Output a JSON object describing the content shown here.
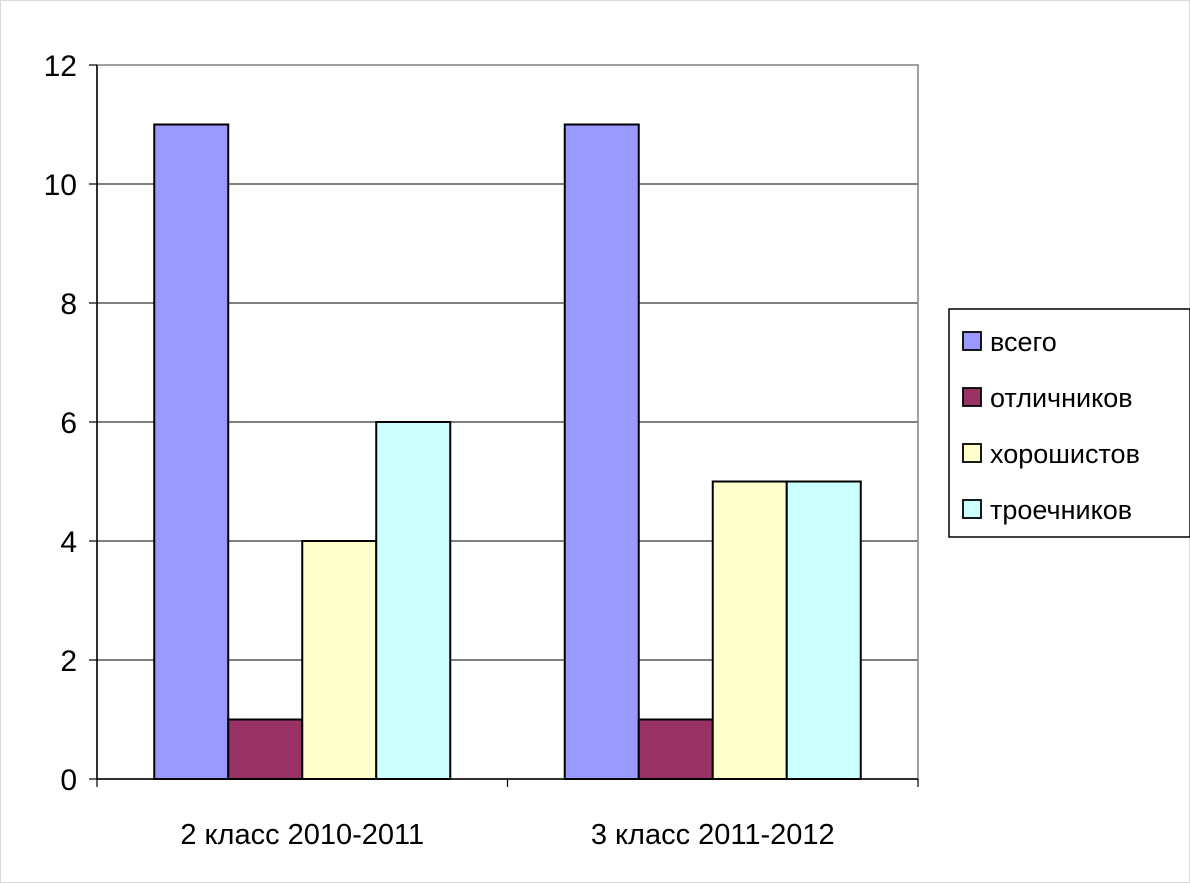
{
  "chart_data": {
    "type": "bar",
    "title": "",
    "xlabel": "",
    "ylabel": "",
    "ylim": [
      0,
      12
    ],
    "yticks": [
      0,
      2,
      4,
      6,
      8,
      10,
      12
    ],
    "grid": true,
    "legend_position": "right",
    "categories": [
      "2 класс 2010-2011",
      "3 класс 2011-2012"
    ],
    "series": [
      {
        "name": "всего",
        "values": [
          11,
          11
        ],
        "color": "#9999ff"
      },
      {
        "name": "отличников",
        "values": [
          1,
          1
        ],
        "color": "#993366"
      },
      {
        "name": "хорошистов",
        "values": [
          4,
          5
        ],
        "color": "#ffffcc"
      },
      {
        "name": "троечников",
        "values": [
          6,
          5
        ],
        "color": "#ccffff"
      }
    ]
  }
}
